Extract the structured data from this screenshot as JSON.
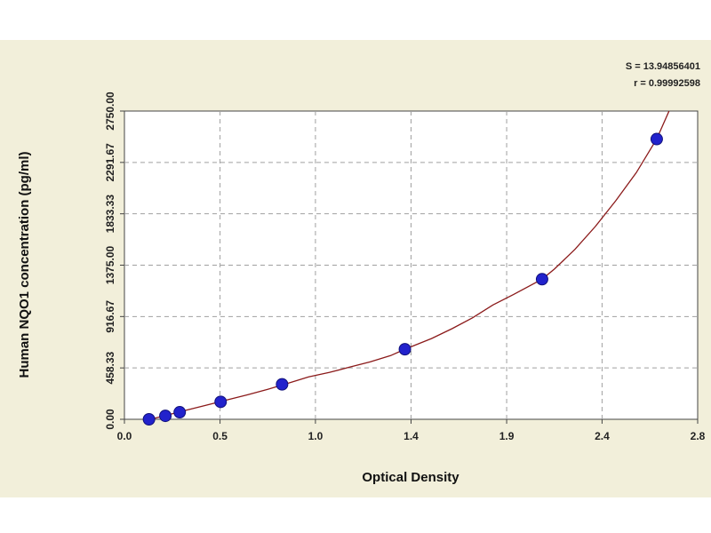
{
  "chart_data": {
    "type": "scatter",
    "xlabel": "Optical Density",
    "ylabel": "Human NQO1 concentration (pg/ml)",
    "xlim": [
      0.0,
      2.8
    ],
    "ylim": [
      0.0,
      2750.0
    ],
    "x_ticks": [
      "0.0",
      "0.5",
      "1.0",
      "1.4",
      "1.9",
      "2.4",
      "2.8"
    ],
    "x_tick_values": [
      0.0,
      0.467,
      0.933,
      1.4,
      1.867,
      2.333,
      2.8
    ],
    "y_ticks": [
      "0.00",
      "458.33",
      "916.67",
      "1375.00",
      "1833.33",
      "2291.67",
      "2750.00"
    ],
    "y_tick_values": [
      0.0,
      458.33,
      916.67,
      1375.0,
      1833.33,
      2291.67,
      2750.0
    ],
    "grid": true,
    "stats": [
      "S = 13.94856401",
      "r = 0.99992598"
    ],
    "series": [
      {
        "type": "scatter",
        "color": "#2222cc",
        "points": [
          {
            "x": 0.12,
            "y": 0
          },
          {
            "x": 0.2,
            "y": 31
          },
          {
            "x": 0.27,
            "y": 63
          },
          {
            "x": 0.47,
            "y": 156
          },
          {
            "x": 0.77,
            "y": 312
          },
          {
            "x": 1.37,
            "y": 625
          },
          {
            "x": 2.04,
            "y": 1250
          },
          {
            "x": 2.6,
            "y": 2500
          }
        ]
      },
      {
        "type": "line",
        "color": "#8b1a1a",
        "curve": [
          [
            0.0,
            -50
          ],
          [
            0.1,
            -13
          ],
          [
            0.2,
            33
          ],
          [
            0.3,
            80
          ],
          [
            0.4,
            126
          ],
          [
            0.5,
            172
          ],
          [
            0.6,
            218
          ],
          [
            0.7,
            268
          ],
          [
            0.8,
            322
          ],
          [
            0.9,
            378
          ],
          [
            1.0,
            418
          ],
          [
            1.1,
            465
          ],
          [
            1.2,
            512
          ],
          [
            1.3,
            568
          ],
          [
            1.37,
            625
          ],
          [
            1.5,
            720
          ],
          [
            1.6,
            808
          ],
          [
            1.7,
            905
          ],
          [
            1.8,
            1020
          ],
          [
            1.9,
            1113
          ],
          [
            2.04,
            1250
          ],
          [
            2.1,
            1340
          ],
          [
            2.2,
            1515
          ],
          [
            2.3,
            1720
          ],
          [
            2.4,
            1950
          ],
          [
            2.5,
            2200
          ],
          [
            2.6,
            2500
          ],
          [
            2.66,
            2750
          ]
        ]
      }
    ]
  }
}
